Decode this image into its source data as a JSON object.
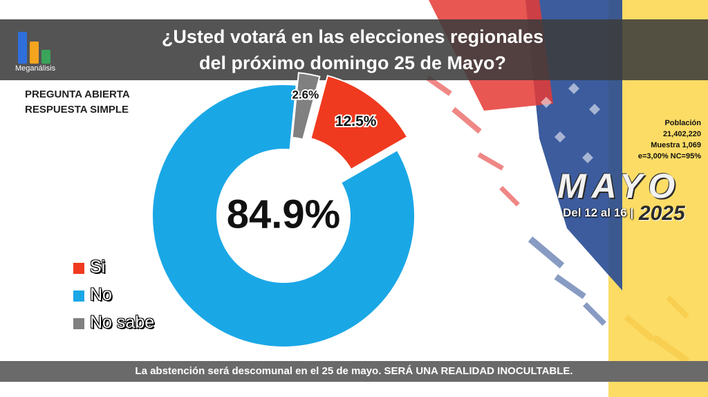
{
  "title": {
    "line1": "¿Usted votará en las elecciones regionales",
    "line2": "del próximo domingo 25 de Mayo?"
  },
  "logo": {
    "text": "Meganálisis"
  },
  "question_type": {
    "line1": "PREGUNTA  ABIERTA",
    "line2": "RESPUESTA SIMPLE"
  },
  "poll_info": {
    "population_label": "Población",
    "population_value": "21,402,220",
    "sample": "Muestra 1,069",
    "error": "e=3,00%  NC=95%"
  },
  "period": {
    "month": "MAYO",
    "range": "Del 12 al 16 |",
    "year": "2025"
  },
  "footer": {
    "text": "La abstención será descomunal en el 25 de mayo. SERÁ UNA REALIDAD INOCULTABLE."
  },
  "colors": {
    "si": "#f03a1f",
    "no": "#1aa7e6",
    "no_sabe": "#808080",
    "header_bg": "#3c3c3c"
  },
  "chart_data": {
    "type": "pie",
    "title": "¿Usted votará en las elecciones regionales del próximo domingo 25 de Mayo?",
    "categories": [
      "Si",
      "No",
      "No sabe"
    ],
    "values": [
      12.5,
      84.9,
      2.6
    ],
    "labels": [
      "12.5%",
      "84.9%",
      "2.6%"
    ],
    "center_label": "84.9%",
    "legend": "left"
  }
}
